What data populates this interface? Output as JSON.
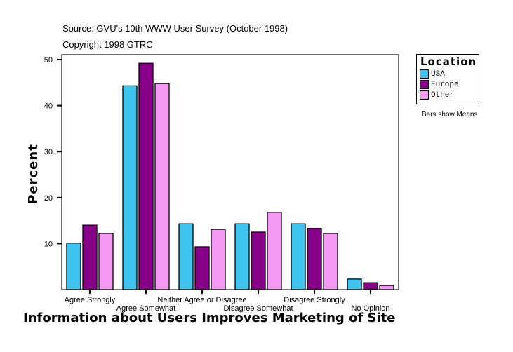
{
  "chart_data": {
    "type": "bar",
    "title": "Information about Users Improves Marketing of Site",
    "subtitle": [
      "Source: GVU's 10th WWW User Survey (October 1998)",
      "Copyright 1998 GTRC"
    ],
    "xlabel": "Information about Users Improves Marketing of Site",
    "ylabel": "Percent",
    "ylim": [
      0,
      50
    ],
    "yticks": [
      10,
      20,
      30,
      40,
      50
    ],
    "categories": [
      "Agree Strongly",
      "Agree Somewhat",
      "Neither Agree or Disagree",
      "Disagree Somewhat",
      "Disagree Strongly",
      "No Opinion"
    ],
    "legend_title": "Location",
    "legend_position": "top-right",
    "note": "Bars show Means",
    "series": [
      {
        "name": "USA",
        "color": "#40c4f0",
        "values": [
          10.1,
          44.3,
          14.3,
          14.3,
          14.3,
          2.3
        ]
      },
      {
        "name": "Europe",
        "color": "#880088",
        "values": [
          14.0,
          49.2,
          9.3,
          12.5,
          13.3,
          1.5
        ]
      },
      {
        "name": "Other",
        "color": "#f49af4",
        "values": [
          12.2,
          44.8,
          13.1,
          16.8,
          12.2,
          0.9
        ]
      }
    ]
  }
}
